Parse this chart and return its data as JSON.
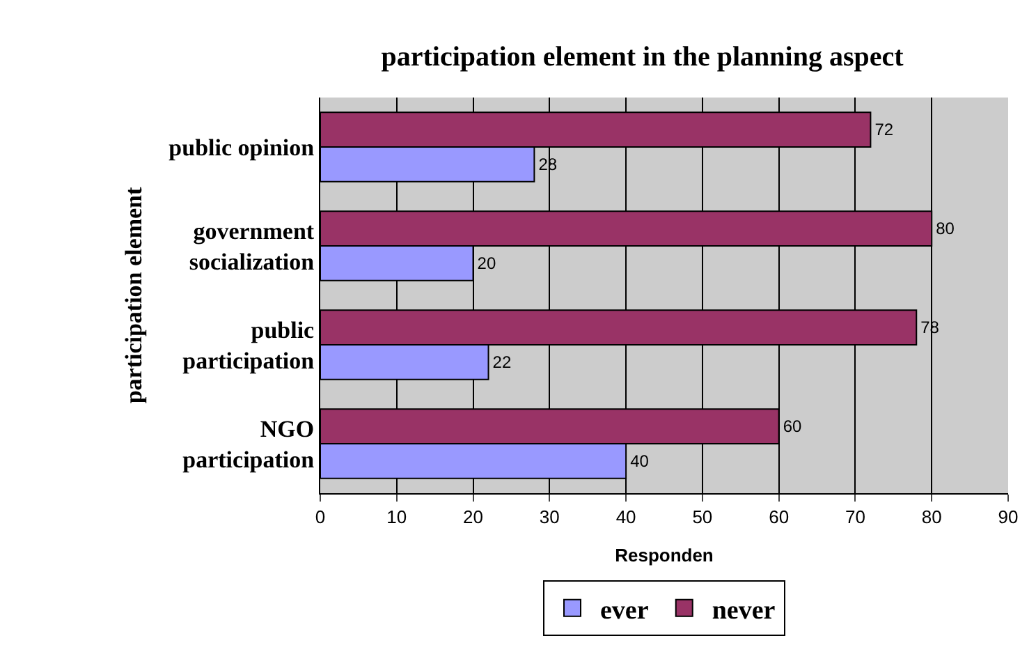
{
  "chart_data": {
    "type": "bar",
    "orientation": "horizontal",
    "title": "participation element in the planning aspect",
    "xlabel": "Responden",
    "ylabel": "participation element",
    "categories": [
      "public opinion",
      "government\nsocialization",
      "public\nparticipation",
      "NGO\nparticipation"
    ],
    "series": [
      {
        "name": "ever",
        "color": "#9999ff",
        "values": [
          28,
          20,
          22,
          40
        ]
      },
      {
        "name": "never",
        "color": "#993366",
        "values": [
          72,
          80,
          78,
          60
        ]
      }
    ],
    "xlim": [
      0,
      90
    ],
    "xticks": [
      0,
      10,
      20,
      30,
      40,
      50,
      60,
      70,
      80,
      90
    ],
    "grid": "x",
    "legend": "bottom",
    "data_labels": true
  }
}
